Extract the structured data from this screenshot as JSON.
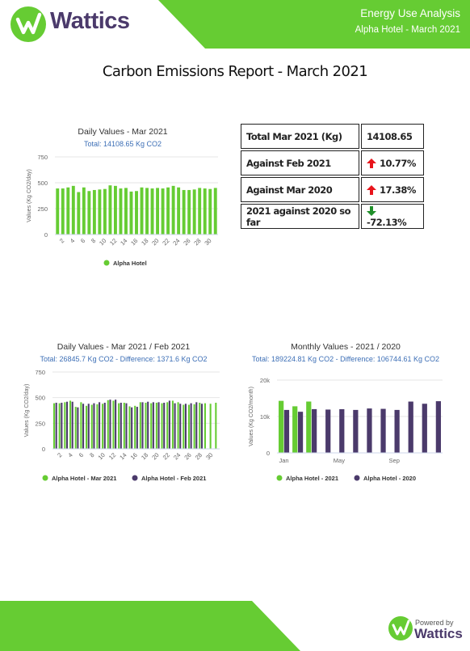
{
  "header": {
    "brand": "Wattics",
    "heading": "Energy Use Analysis",
    "subheading": "Alpha Hotel - March 2021"
  },
  "report_title": "Carbon Emissions Report - March 2021",
  "table": {
    "rows": [
      {
        "label": "Total Mar 2021 (Kg)",
        "value": "14108.65"
      },
      {
        "label": "Against Feb 2021",
        "value": "10.77%",
        "trend": "up"
      },
      {
        "label": "Against Mar 2020",
        "value": "17.38%",
        "trend": "up"
      },
      {
        "label": "2021 against 2020 so far",
        "value": "-72.13%",
        "trend": "down"
      }
    ]
  },
  "chart_data": [
    {
      "type": "bar",
      "title": "Daily Values - Mar 2021",
      "subtitle": "Total: 14108.65 Kg CO2",
      "y_label": "Values (Kg CO2/day)",
      "categories": [
        null,
        2,
        null,
        4,
        null,
        6,
        null,
        8,
        null,
        10,
        null,
        12,
        null,
        14,
        null,
        16,
        null,
        18,
        null,
        20,
        null,
        22,
        null,
        24,
        null,
        26,
        null,
        28,
        null,
        30,
        null
      ],
      "series": [
        {
          "name": "Alpha Hotel",
          "color": "#66cc33",
          "values": [
            445,
            445,
            455,
            470,
            410,
            455,
            420,
            430,
            435,
            440,
            475,
            470,
            445,
            450,
            415,
            420,
            455,
            450,
            445,
            450,
            445,
            455,
            470,
            455,
            430,
            430,
            435,
            450,
            445,
            440,
            450
          ]
        }
      ],
      "ylim": [
        0,
        750
      ],
      "yticks": [
        0,
        250,
        500,
        750
      ],
      "grid": true
    },
    {
      "type": "bar",
      "title": "Daily Values - Mar 2021 / Feb 2021",
      "subtitle": "Total: 26845.7 Kg CO2 - Difference: 1371.6 Kg CO2",
      "y_label": "Values (Kg CO2/day)",
      "categories": [
        null,
        2,
        null,
        4,
        null,
        6,
        null,
        8,
        null,
        10,
        null,
        12,
        null,
        14,
        null,
        16,
        null,
        18,
        null,
        20,
        null,
        22,
        null,
        24,
        null,
        26,
        null,
        28,
        null,
        30,
        null
      ],
      "series": [
        {
          "name": "Alpha Hotel - Mar 2021",
          "color": "#66cc33",
          "values": [
            445,
            445,
            455,
            470,
            410,
            455,
            420,
            430,
            435,
            440,
            475,
            470,
            445,
            450,
            415,
            420,
            455,
            450,
            445,
            450,
            445,
            455,
            470,
            455,
            430,
            430,
            435,
            450,
            445,
            440,
            450
          ]
        },
        {
          "name": "Alpha Hotel - Feb 2021",
          "color": "#4b3a6b",
          "values": [
            450,
            450,
            460,
            460,
            405,
            440,
            440,
            445,
            455,
            450,
            480,
            480,
            450,
            445,
            405,
            410,
            455,
            460,
            455,
            455,
            450,
            470,
            445,
            440,
            440,
            445,
            455,
            440,
            null,
            null,
            null
          ]
        }
      ],
      "ylim": [
        0,
        750
      ],
      "yticks": [
        0,
        250,
        500,
        750
      ],
      "grid": true
    },
    {
      "type": "bar",
      "title": "Monthly Values - 2021 / 2020",
      "subtitle": "Total: 189224.81 Kg CO2 - Difference: 106744.61 Kg CO2",
      "y_label": "Values (Kg CO2/month)",
      "categories": [
        "Jan",
        null,
        null,
        null,
        "May",
        null,
        null,
        null,
        "Sep",
        null,
        null,
        null
      ],
      "series": [
        {
          "name": "Alpha Hotel - 2021",
          "color": "#66cc33",
          "values": [
            14300,
            12800,
            14108.65,
            null,
            null,
            null,
            null,
            null,
            null,
            null,
            null,
            null
          ]
        },
        {
          "name": "Alpha Hotel - 2020",
          "color": "#4b3a6b",
          "values": [
            11800,
            11300,
            12019,
            11900,
            12000,
            11800,
            12200,
            12100,
            11800,
            14100,
            13500,
            14200
          ]
        }
      ],
      "ylim": [
        0,
        20000
      ],
      "yticks": [
        0,
        {
          "value": 10000,
          "label": "10k"
        },
        {
          "value": 20000,
          "label": "20k"
        }
      ],
      "grid": true
    }
  ],
  "footer": {
    "powered_by": "Powered by",
    "brand": "Wattics"
  }
}
